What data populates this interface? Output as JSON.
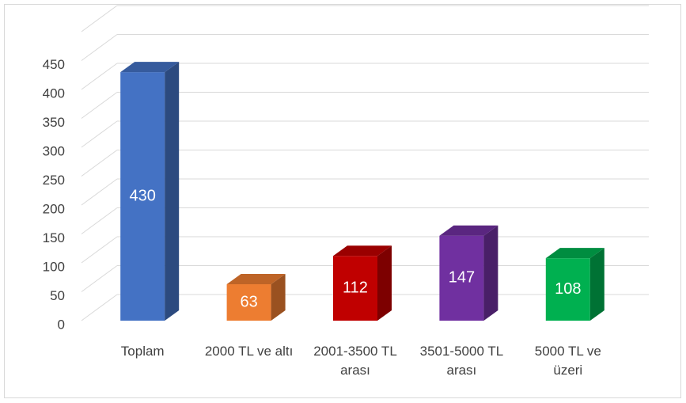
{
  "chart_data": {
    "type": "bar3d",
    "categories": [
      "Toplam",
      "2000 TL ve altı",
      "2001-3500 TL arası",
      "3501-5000 TL arası",
      "5000 TL ve üzeri"
    ],
    "values": [
      430,
      63,
      112,
      147,
      108
    ],
    "colors": [
      "#4472c4",
      "#ed7d31",
      "#c00000",
      "#7030a0",
      "#00b050"
    ],
    "ylim": [
      0,
      500
    ],
    "yticks": [
      0,
      50,
      100,
      150,
      200,
      250,
      300,
      350,
      400,
      450
    ],
    "grid": true
  }
}
